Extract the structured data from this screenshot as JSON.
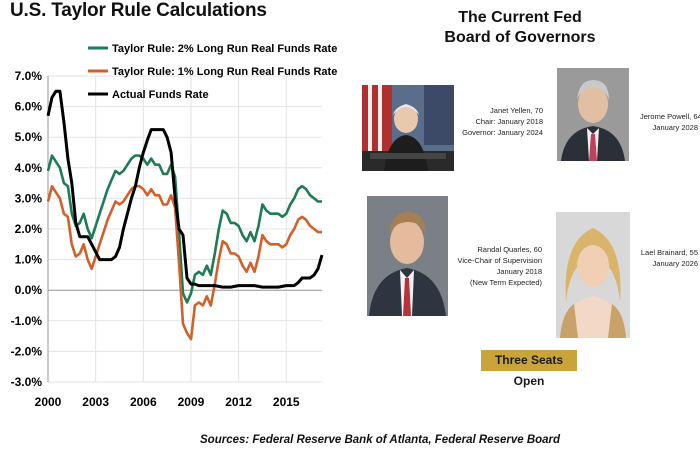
{
  "chart_data": {
    "type": "line",
    "title": "U.S. Taylor Rule Calculations",
    "xlabel": "",
    "ylabel": "",
    "x_ticks": [
      "2000",
      "2003",
      "2006",
      "2009",
      "2012",
      "2015"
    ],
    "y_ticks": [
      "7.0%",
      "6.0%",
      "5.0%",
      "4.0%",
      "3.0%",
      "2.0%",
      "1.0%",
      "0.0%",
      "-1.0%",
      "-2.0%",
      "-3.0%"
    ],
    "xlim": [
      2000,
      2017.25
    ],
    "ylim": [
      -3.0,
      7.0
    ],
    "legend_position": "top",
    "series": [
      {
        "name": "Taylor Rule: 2% Long Run Real Funds Rate",
        "color": "#1e7b55",
        "x": [
          2000.0,
          2000.25,
          2000.5,
          2000.75,
          2001.0,
          2001.25,
          2001.5,
          2001.75,
          2002.0,
          2002.25,
          2002.5,
          2002.75,
          2003.0,
          2003.25,
          2003.5,
          2003.75,
          2004.0,
          2004.25,
          2004.5,
          2004.75,
          2005.0,
          2005.25,
          2005.5,
          2005.75,
          2006.0,
          2006.25,
          2006.5,
          2006.75,
          2007.0,
          2007.25,
          2007.5,
          2007.75,
          2008.0,
          2008.25,
          2008.5,
          2008.75,
          2009.0,
          2009.25,
          2009.5,
          2009.75,
          2010.0,
          2010.25,
          2010.5,
          2010.75,
          2011.0,
          2011.25,
          2011.5,
          2011.75,
          2012.0,
          2012.25,
          2012.5,
          2012.75,
          2013.0,
          2013.25,
          2013.5,
          2013.75,
          2014.0,
          2014.25,
          2014.5,
          2014.75,
          2015.0,
          2015.25,
          2015.5,
          2015.75,
          2016.0,
          2016.25,
          2016.5,
          2016.75,
          2017.0,
          2017.25
        ],
        "values": [
          3.9,
          4.4,
          4.2,
          4.0,
          3.5,
          3.4,
          2.5,
          2.1,
          2.2,
          2.5,
          2.0,
          1.7,
          2.1,
          2.5,
          2.9,
          3.3,
          3.6,
          3.9,
          3.8,
          3.9,
          4.1,
          4.3,
          4.4,
          4.4,
          4.3,
          4.1,
          4.3,
          4.1,
          4.1,
          3.8,
          3.8,
          4.1,
          3.7,
          1.9,
          -0.1,
          -0.4,
          -0.1,
          0.5,
          0.6,
          0.5,
          0.8,
          0.5,
          1.2,
          2.0,
          2.6,
          2.5,
          2.2,
          2.2,
          2.1,
          1.8,
          1.6,
          1.9,
          1.6,
          2.1,
          2.8,
          2.6,
          2.5,
          2.5,
          2.5,
          2.4,
          2.5,
          2.8,
          3.0,
          3.3,
          3.4,
          3.3,
          3.1,
          3.0,
          2.9,
          2.9
        ]
      },
      {
        "name": "Taylor Rule: 1% Long Run Real Funds Rate",
        "color": "#d2602a",
        "x": [
          2000.0,
          2000.25,
          2000.5,
          2000.75,
          2001.0,
          2001.25,
          2001.5,
          2001.75,
          2002.0,
          2002.25,
          2002.5,
          2002.75,
          2003.0,
          2003.25,
          2003.5,
          2003.75,
          2004.0,
          2004.25,
          2004.5,
          2004.75,
          2005.0,
          2005.25,
          2005.5,
          2005.75,
          2006.0,
          2006.25,
          2006.5,
          2006.75,
          2007.0,
          2007.25,
          2007.5,
          2007.75,
          2008.0,
          2008.25,
          2008.5,
          2008.75,
          2009.0,
          2009.25,
          2009.5,
          2009.75,
          2010.0,
          2010.25,
          2010.5,
          2010.75,
          2011.0,
          2011.25,
          2011.5,
          2011.75,
          2012.0,
          2012.25,
          2012.5,
          2012.75,
          2013.0,
          2013.25,
          2013.5,
          2013.75,
          2014.0,
          2014.25,
          2014.5,
          2014.75,
          2015.0,
          2015.25,
          2015.5,
          2015.75,
          2016.0,
          2016.25,
          2016.5,
          2016.75,
          2017.0,
          2017.25
        ],
        "values": [
          2.9,
          3.4,
          3.2,
          3.0,
          2.5,
          2.4,
          1.5,
          1.1,
          1.2,
          1.5,
          1.0,
          0.7,
          1.1,
          1.5,
          1.9,
          2.3,
          2.6,
          2.9,
          2.8,
          2.9,
          3.1,
          3.3,
          3.4,
          3.4,
          3.3,
          3.1,
          3.3,
          3.1,
          3.1,
          2.8,
          2.8,
          3.1,
          2.7,
          0.9,
          -1.1,
          -1.4,
          -1.6,
          -0.5,
          -0.4,
          -0.5,
          -0.2,
          -0.5,
          0.2,
          1.0,
          1.6,
          1.5,
          1.2,
          1.2,
          1.1,
          0.8,
          0.6,
          0.9,
          0.6,
          1.1,
          1.8,
          1.6,
          1.5,
          1.5,
          1.5,
          1.4,
          1.5,
          1.8,
          2.0,
          2.3,
          2.4,
          2.3,
          2.1,
          2.0,
          1.9,
          1.9
        ]
      },
      {
        "name": "Actual Funds Rate",
        "color": "#000000",
        "x": [
          2000.0,
          2000.25,
          2000.5,
          2000.75,
          2001.0,
          2001.25,
          2001.5,
          2001.75,
          2002.0,
          2002.25,
          2002.5,
          2002.75,
          2003.0,
          2003.25,
          2003.5,
          2003.75,
          2004.0,
          2004.25,
          2004.5,
          2004.75,
          2005.0,
          2005.25,
          2005.5,
          2005.75,
          2006.0,
          2006.25,
          2006.5,
          2006.75,
          2007.0,
          2007.25,
          2007.5,
          2007.75,
          2008.0,
          2008.25,
          2008.5,
          2008.75,
          2009.0,
          2009.25,
          2009.5,
          2009.75,
          2010.0,
          2010.5,
          2011.0,
          2011.5,
          2012.0,
          2012.5,
          2013.0,
          2013.5,
          2014.0,
          2014.5,
          2015.0,
          2015.5,
          2015.75,
          2016.0,
          2016.5,
          2016.75,
          2017.0,
          2017.25
        ],
        "values": [
          5.7,
          6.3,
          6.5,
          6.5,
          5.5,
          4.3,
          3.5,
          2.2,
          1.75,
          1.75,
          1.75,
          1.5,
          1.25,
          1.0,
          1.0,
          1.0,
          1.0,
          1.1,
          1.4,
          2.0,
          2.5,
          3.0,
          3.4,
          4.0,
          4.5,
          4.9,
          5.25,
          5.25,
          5.25,
          5.25,
          5.0,
          4.5,
          3.0,
          2.0,
          1.8,
          0.4,
          0.2,
          0.2,
          0.15,
          0.15,
          0.15,
          0.15,
          0.1,
          0.1,
          0.15,
          0.15,
          0.15,
          0.1,
          0.1,
          0.1,
          0.15,
          0.15,
          0.25,
          0.4,
          0.4,
          0.5,
          0.7,
          1.15
        ]
      }
    ]
  },
  "board": {
    "title_line1": "The Current Fed",
    "title_line2": "Board of Governors",
    "members": [
      {
        "lines": [
          "Janet Yellen, 70",
          "Chair: January 2018",
          "Governor:  January 2024"
        ]
      },
      {
        "lines": [
          "Jerome Powell, 64",
          "January 2028"
        ]
      },
      {
        "lines": [
          "Randal Quarles, 60",
          "Vice-Chair of Supervision",
          "January 2018",
          "(New Term Expected)"
        ]
      },
      {
        "lines": [
          "Lael Brainard, 55",
          "January 2026"
        ]
      }
    ],
    "seats_open": "Three Seats Open"
  },
  "footer": {
    "sources": "Sources: Federal Reserve Bank of Atlanta, Federal Reserve Board"
  }
}
